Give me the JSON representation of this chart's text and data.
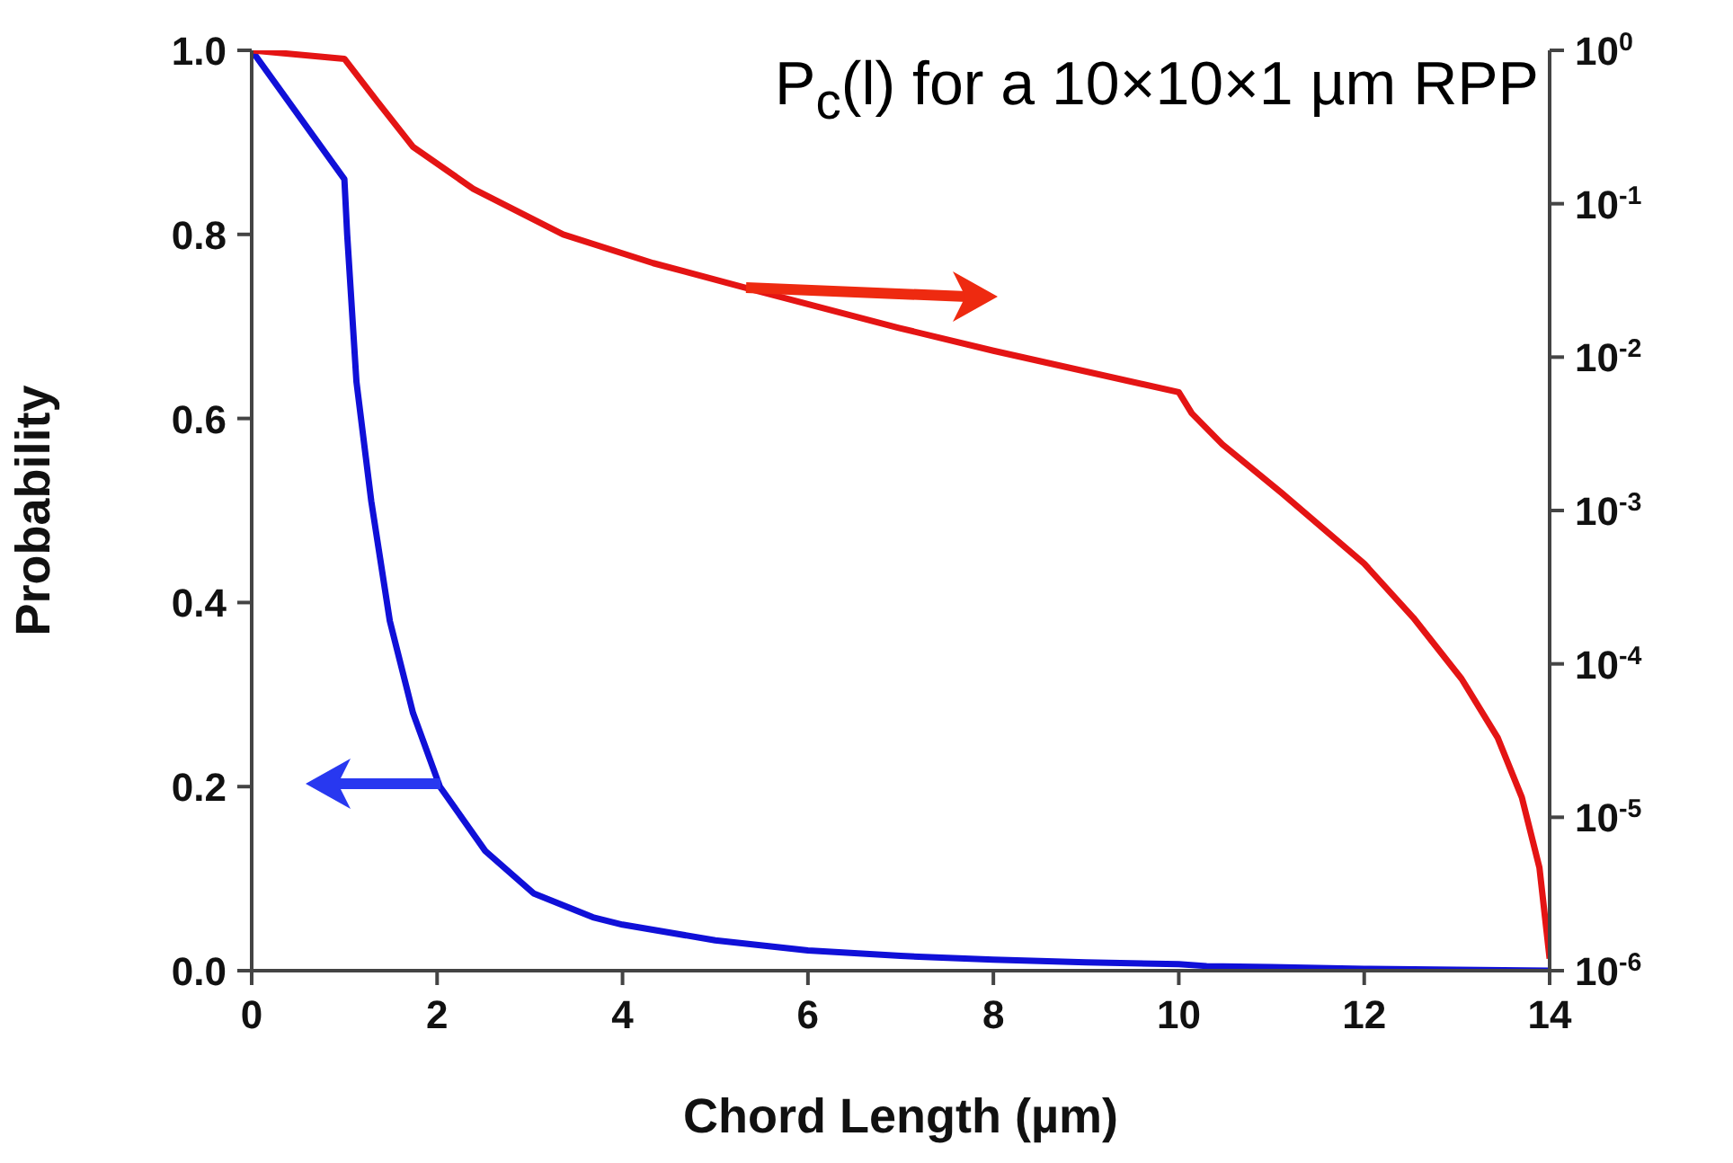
{
  "chart_data": {
    "type": "line",
    "title": "P$_{c}$(l) for a 10×10×1 µm RPP",
    "xlabel": "Chord Length (µm)",
    "ylabel": "Probability",
    "xlim": [
      0,
      14
    ],
    "xticks": [
      0,
      2,
      4,
      6,
      8,
      10,
      12,
      14
    ],
    "ylim": [
      0,
      1
    ],
    "yticks": [
      {
        "value": 0,
        "label": "0.0"
      },
      0.2,
      0.4,
      0.6,
      0.8,
      {
        "value": 1,
        "label": "1.0"
      }
    ],
    "y2lim": [
      1e-06,
      1
    ],
    "y2ticks": [
      {
        "value": 1e-06,
        "label": "10$^{-6}$"
      },
      {
        "value": 1e-05,
        "label": "10$^{-5}$"
      },
      {
        "value": 0.0001,
        "label": "10$^{-4}$"
      },
      {
        "value": 0.001,
        "label": "10$^{-3}$"
      },
      {
        "value": 0.01,
        "label": "10$^{-2}$"
      },
      {
        "value": 0.1,
        "label": "10$^{-1}$"
      },
      {
        "value": 1,
        "label": "10$^{0}$"
      }
    ],
    "log": "y2",
    "series": [
      {
        "color": "#1010d8",
        "x": [
          0,
          1,
          1.03,
          1.13,
          1.29,
          1.49,
          1.74,
          2.03,
          2.52,
          3.04,
          3.68,
          4,
          5,
          6,
          7,
          8,
          9,
          10,
          10.3,
          11,
          12,
          13,
          14
        ],
        "values": [
          1,
          0.86,
          0.8,
          0.64,
          0.51,
          0.38,
          0.28,
          0.2,
          0.13,
          0.084,
          0.058,
          0.05,
          0.033,
          0.022,
          0.016,
          0.012,
          0.009,
          0.007,
          0.005,
          0.004,
          0.002,
          0.001,
          0
        ]
      },
      {
        "color": "#e41414",
        "axis": "y2",
        "x": [
          0,
          1,
          1.36,
          1.74,
          2.39,
          3.36,
          4.33,
          5.36,
          6.98,
          8,
          10,
          10.14,
          10.47,
          11.11,
          12,
          12.53,
          13.05,
          13.44,
          13.7,
          13.89,
          14
        ],
        "values": [
          1,
          0.88,
          0.46,
          0.235,
          0.125,
          0.063,
          0.041,
          0.028,
          0.0155,
          0.011,
          0.0059,
          0.0043,
          0.0027,
          0.0013,
          0.00045,
          0.0002,
          8e-05,
          3.3e-05,
          1.35e-05,
          4.7e-06,
          1.2e-06
        ]
      }
    ]
  }
}
